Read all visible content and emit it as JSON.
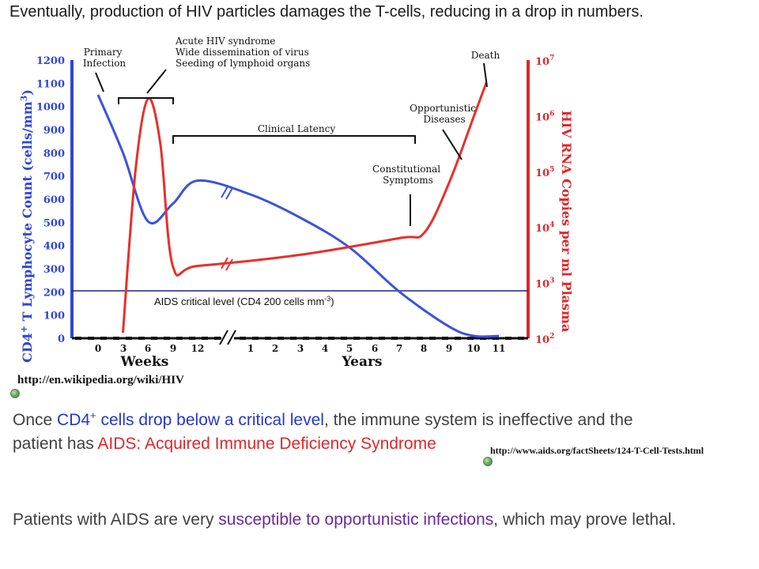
{
  "heading": "Eventually, production of HIV particles damages the T-cells, reducing in a drop in numbers.",
  "chart_data": {
    "type": "line",
    "y_left_label": "CD4+ T Lymphocyte Count (cells/mm3)",
    "y_left_label_parts": {
      "a": "CD4",
      "sup": "+",
      "b": " T Lymphocyte Count (cells/mm",
      "sup2": "3",
      "c": ")"
    },
    "y_left_ticks": [
      "1200",
      "1100",
      "1000",
      "900",
      "800",
      "700",
      "600",
      "500",
      "400",
      "300",
      "200",
      "100",
      "0"
    ],
    "y_left_range": [
      0,
      1200
    ],
    "y_right_label": "HIV RNA Copies per ml Plasma",
    "y_right_ticks": [
      "10^7",
      "10^6",
      "10^5",
      "10^4",
      "10^3",
      "10^2"
    ],
    "y_right_ticks_parts": [
      {
        "base": "10",
        "exp": "7"
      },
      {
        "base": "10",
        "exp": "6"
      },
      {
        "base": "10",
        "exp": "5"
      },
      {
        "base": "10",
        "exp": "4"
      },
      {
        "base": "10",
        "exp": "3"
      },
      {
        "base": "10",
        "exp": "2"
      }
    ],
    "y_right_range_log10": [
      2,
      7
    ],
    "x_weeks_label": "Weeks",
    "x_weeks_ticks": [
      "0",
      "3",
      "6",
      "9",
      "12"
    ],
    "x_years_label": "Years",
    "x_years_ticks": [
      "1",
      "2",
      "3",
      "4",
      "5",
      "6",
      "7",
      "8",
      "9",
      "10",
      "11"
    ],
    "series": [
      {
        "name": "CD4+ T Lymphocyte Count",
        "color": "#3a52e0",
        "points": [
          {
            "t": "0 wk",
            "v": 1050
          },
          {
            "t": "3 wk",
            "v": 800
          },
          {
            "t": "6 wk",
            "v": 505
          },
          {
            "t": "9 wk",
            "v": 580
          },
          {
            "t": "12 wk",
            "v": 680
          },
          {
            "t": "1 yr",
            "v": 620
          },
          {
            "t": "3 yr",
            "v": 520
          },
          {
            "t": "5 yr",
            "v": 390
          },
          {
            "t": "7 yr",
            "v": 200
          },
          {
            "t": "9 yr",
            "v": 50
          },
          {
            "t": "10 yr",
            "v": 10
          },
          {
            "t": "11 yr",
            "v": 10
          }
        ]
      },
      {
        "name": "HIV RNA Copies per ml Plasma",
        "color": "#e8302c",
        "points": [
          {
            "t": "3 wk",
            "log10": 2.1
          },
          {
            "t": "4.5 wk",
            "log10": 5.0
          },
          {
            "t": "6 wk",
            "log10": 6.3
          },
          {
            "t": "7.5 wk",
            "log10": 5.5
          },
          {
            "t": "9 wk",
            "log10": 3.3
          },
          {
            "t": "12 wk",
            "log10": 3.3
          },
          {
            "t": "3 yr",
            "log10": 3.5
          },
          {
            "t": "7 yr",
            "log10": 3.8
          },
          {
            "t": "8 yr",
            "log10": 3.9
          },
          {
            "t": "9 yr",
            "log10": 4.8
          },
          {
            "t": "10 yr",
            "log10": 6.0
          },
          {
            "t": "10.5 yr",
            "log10": 6.6
          }
        ]
      }
    ],
    "reference_line": {
      "value": 200,
      "label": "AIDS critical level (CD4 200 cells mm",
      "label_sup": "-3",
      "label_end": ")"
    },
    "annotations": {
      "primary_infection": [
        "Primary",
        "Infection"
      ],
      "acute": [
        "Acute HIV syndrome",
        "Wide dissemination of virus",
        "Seeding of lymphoid organs"
      ],
      "clinical_latency": "Clinical Latency",
      "constitutional": [
        "Constitutional",
        "Symptoms"
      ],
      "opportunistic": [
        "Opportunistic",
        "Diseases"
      ],
      "death": "Death"
    }
  },
  "source_1": "http://en.wikipedia.org/wiki/HIV",
  "source_2": "http://www.aids.org/factSheets/124-T-Cell-Tests.html",
  "para1": {
    "pre": "Once ",
    "blue_a": "CD4",
    "blue_sup": "+",
    "blue_b": " cells drop below a critical level",
    "mid": ", the immune system is ineffective and the",
    "line2_pre": "patient has ",
    "red": "AIDS: Acquired Immune Deficiency Syndrome"
  },
  "para2": {
    "pre": "Patients with AIDS are very ",
    "purple": "susceptible to opportunistic infections",
    "post": ", which may prove lethal."
  },
  "colors": {
    "cd4_line": "#3a52e0",
    "rna_line": "#e8302c",
    "left_axis": "#2f45d8",
    "right_axis": "#e0262a",
    "ref_line": "#1a237e"
  }
}
